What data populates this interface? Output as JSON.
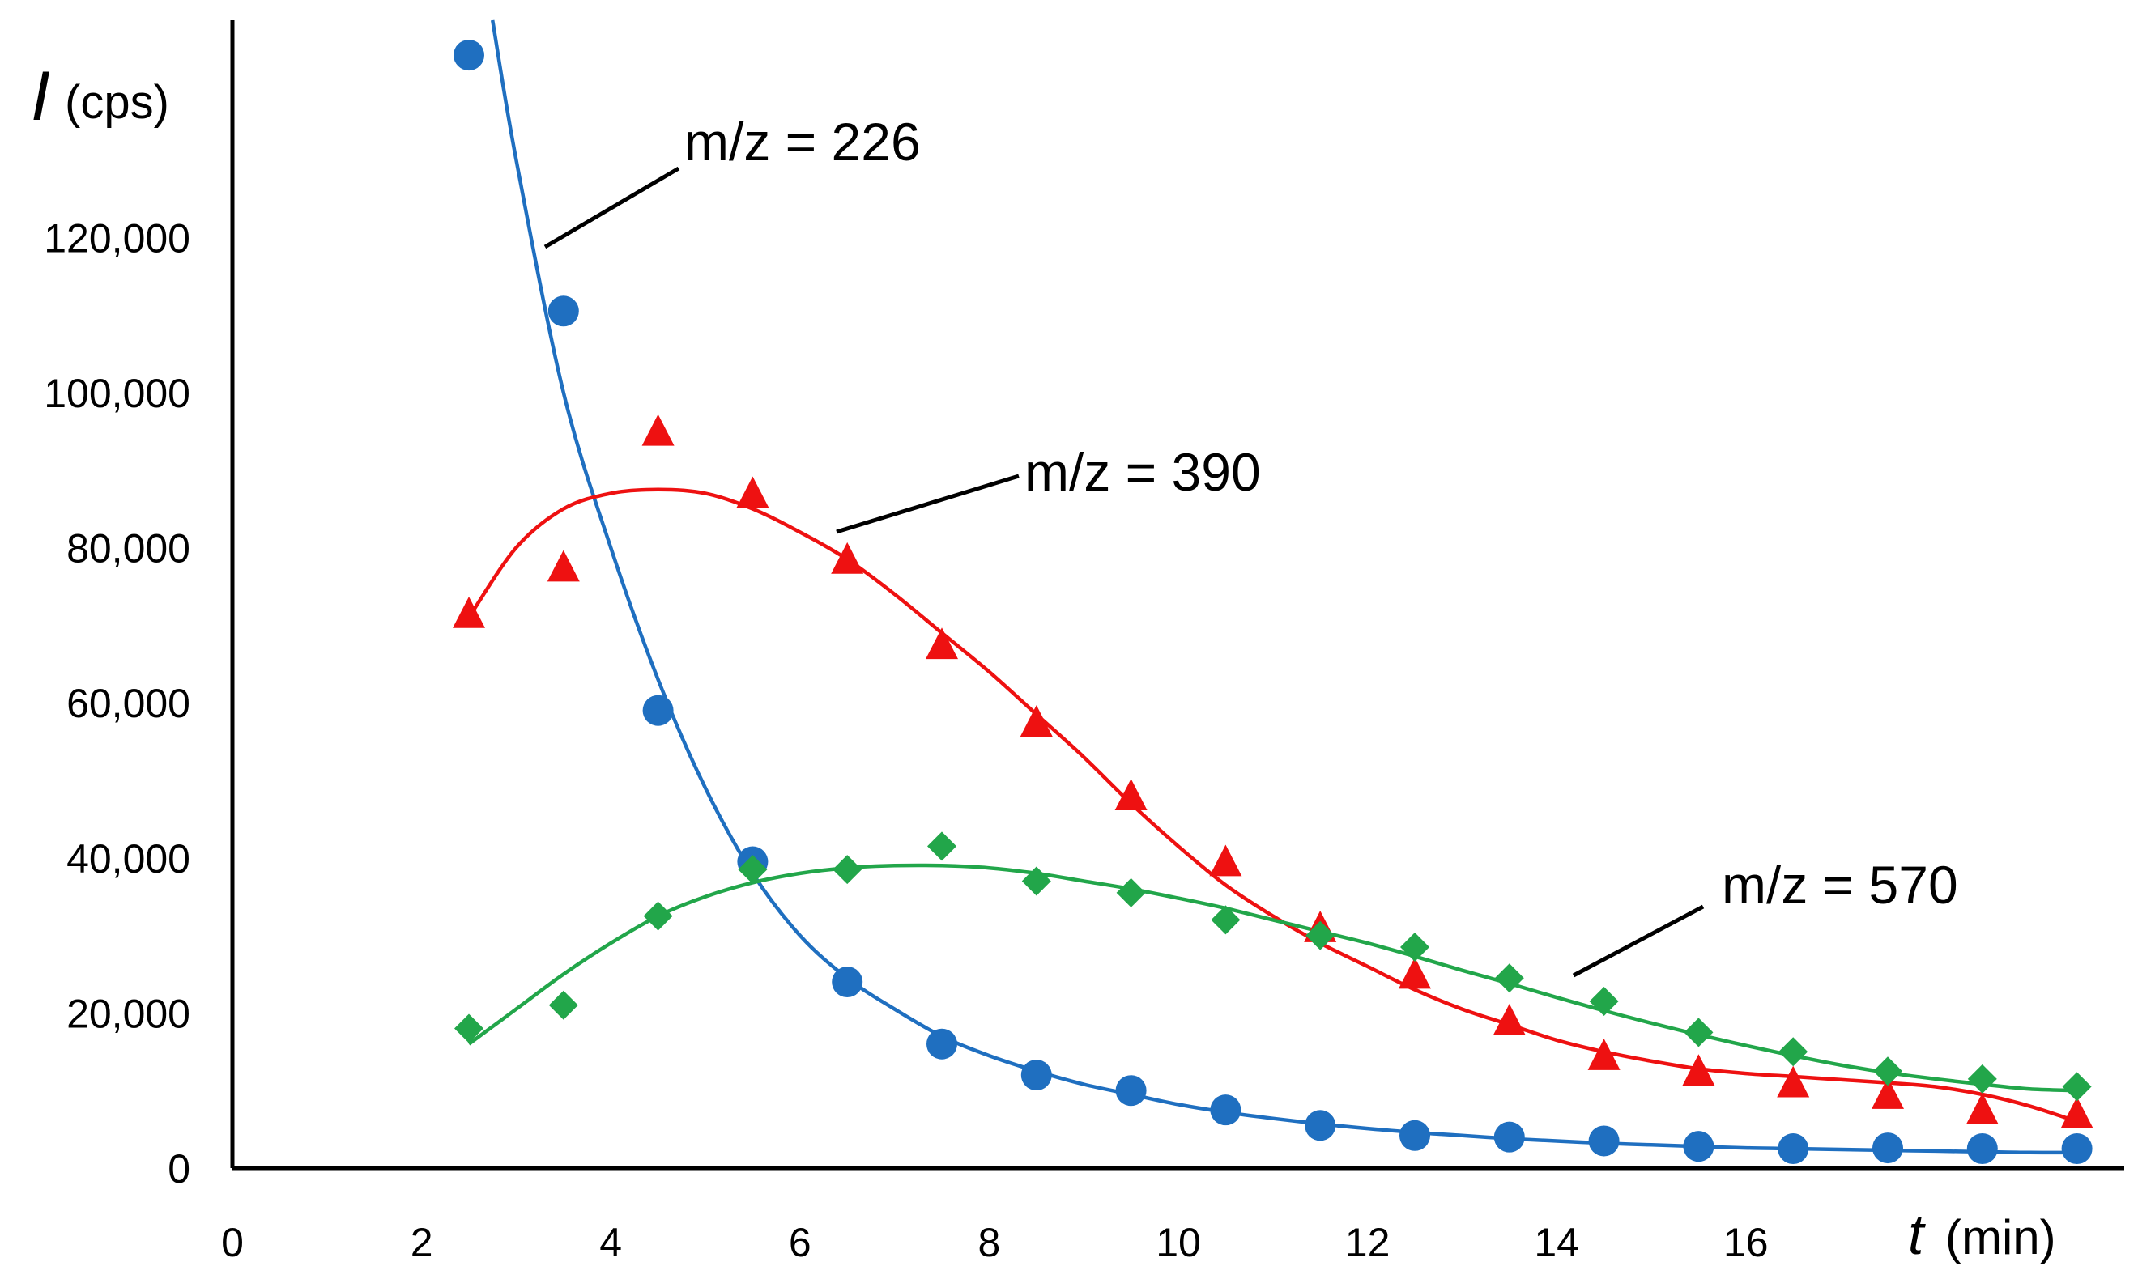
{
  "chart_data": {
    "type": "scatter",
    "title": "",
    "ylabel": {
      "symbol": "I",
      "unit": "(cps)"
    },
    "xlabel": {
      "symbol": "t",
      "unit": "(min)"
    },
    "xlim": [
      0,
      20
    ],
    "ylim": [
      0,
      148000
    ],
    "x_ticks": [
      0,
      2,
      4,
      6,
      8,
      10,
      12,
      14,
      16
    ],
    "x_tick_labels": [
      "0",
      "2",
      "4",
      "6",
      "8",
      "10",
      "12",
      "14",
      "16"
    ],
    "y_ticks": [
      0,
      20000,
      40000,
      60000,
      80000,
      100000,
      120000
    ],
    "y_tick_labels": [
      "0",
      "20,000",
      "40,000",
      "60,000",
      "80,000",
      "100,000",
      "120,000"
    ],
    "grid": false,
    "x": [
      2.5,
      3.5,
      4.5,
      5.5,
      6.5,
      7.5,
      8.5,
      9.5,
      10.5,
      11.5,
      12.5,
      13.5,
      14.5,
      15.5,
      16.5,
      17.5,
      18.5,
      19.5
    ],
    "series": [
      {
        "name": "m/z = 226",
        "color": "#1f6fc0",
        "marker": "circle",
        "values": [
          143500,
          110500,
          59000,
          39500,
          24000,
          16000,
          12000,
          10000,
          7500,
          5500,
          4200,
          4000,
          3500,
          2800,
          2500,
          2600,
          2500,
          2500
        ],
        "fit": [
          [
            2.75,
            148000
          ],
          [
            3.0,
            130000
          ],
          [
            3.5,
            100000
          ],
          [
            4.0,
            80000
          ],
          [
            4.5,
            63000
          ],
          [
            5.0,
            49000
          ],
          [
            5.5,
            38000
          ],
          [
            6.0,
            30000
          ],
          [
            6.5,
            24500
          ],
          [
            7.0,
            20500
          ],
          [
            7.5,
            17000
          ],
          [
            8.0,
            14500
          ],
          [
            8.5,
            12500
          ],
          [
            9.0,
            10800
          ],
          [
            9.5,
            9500
          ],
          [
            10.0,
            8200
          ],
          [
            10.5,
            7200
          ],
          [
            11.0,
            6400
          ],
          [
            11.5,
            5700
          ],
          [
            12.0,
            5100
          ],
          [
            12.5,
            4600
          ],
          [
            13.0,
            4200
          ],
          [
            13.5,
            3800
          ],
          [
            14.0,
            3500
          ],
          [
            14.5,
            3200
          ],
          [
            15.0,
            3000
          ],
          [
            15.5,
            2800
          ],
          [
            16.0,
            2600
          ],
          [
            16.5,
            2500
          ],
          [
            17.0,
            2400
          ],
          [
            17.5,
            2300
          ],
          [
            18.0,
            2200
          ],
          [
            18.5,
            2100
          ],
          [
            19.0,
            2000
          ],
          [
            19.5,
            2000
          ]
        ]
      },
      {
        "name": "m/z = 390",
        "color": "#ee1111",
        "marker": "triangle",
        "values": [
          71500,
          77500,
          95000,
          87000,
          78500,
          67500,
          57500,
          48000,
          39500,
          31000,
          25000,
          19000,
          14500,
          12500,
          11000,
          9500,
          7500,
          7000
        ],
        "fit": [
          [
            2.5,
            71000
          ],
          [
            3.0,
            80000
          ],
          [
            3.5,
            85000
          ],
          [
            4.0,
            87000
          ],
          [
            4.5,
            87500
          ],
          [
            5.0,
            87000
          ],
          [
            5.5,
            85000
          ],
          [
            6.0,
            82000
          ],
          [
            6.5,
            78500
          ],
          [
            7.0,
            74000
          ],
          [
            7.5,
            69000
          ],
          [
            8.0,
            64000
          ],
          [
            8.5,
            58500
          ],
          [
            9.0,
            53000
          ],
          [
            9.5,
            47000
          ],
          [
            10.0,
            41500
          ],
          [
            10.5,
            36500
          ],
          [
            11.0,
            32500
          ],
          [
            11.5,
            29000
          ],
          [
            12.0,
            26000
          ],
          [
            12.5,
            23000
          ],
          [
            13.0,
            20500
          ],
          [
            13.5,
            18500
          ],
          [
            14.0,
            16500
          ],
          [
            14.5,
            15000
          ],
          [
            15.0,
            13800
          ],
          [
            15.5,
            12800
          ],
          [
            16.0,
            12200
          ],
          [
            16.5,
            11800
          ],
          [
            17.0,
            11400
          ],
          [
            17.5,
            11000
          ],
          [
            18.0,
            10500
          ],
          [
            18.5,
            9500
          ],
          [
            19.0,
            8000
          ],
          [
            19.5,
            6000
          ]
        ]
      },
      {
        "name": "m/z = 570",
        "color": "#22a64a",
        "marker": "diamond",
        "values": [
          18000,
          21000,
          32500,
          38500,
          38500,
          41500,
          37000,
          35500,
          32000,
          30000,
          28500,
          24500,
          21500,
          17500,
          15000,
          12500,
          11500,
          10500
        ],
        "fit": [
          [
            2.5,
            16000
          ],
          [
            3.0,
            20500
          ],
          [
            3.5,
            25000
          ],
          [
            4.0,
            29000
          ],
          [
            4.5,
            32500
          ],
          [
            5.0,
            35000
          ],
          [
            5.5,
            36800
          ],
          [
            6.0,
            38000
          ],
          [
            6.5,
            38700
          ],
          [
            7.0,
            39000
          ],
          [
            7.5,
            39000
          ],
          [
            8.0,
            38700
          ],
          [
            8.5,
            38000
          ],
          [
            9.0,
            37000
          ],
          [
            9.5,
            36000
          ],
          [
            10.0,
            34800
          ],
          [
            10.5,
            33500
          ],
          [
            11.0,
            32000
          ],
          [
            11.5,
            30500
          ],
          [
            12.0,
            29000
          ],
          [
            12.5,
            27300
          ],
          [
            13.0,
            25500
          ],
          [
            13.5,
            23800
          ],
          [
            14.0,
            22000
          ],
          [
            14.5,
            20300
          ],
          [
            15.0,
            18700
          ],
          [
            15.5,
            17200
          ],
          [
            16.0,
            15800
          ],
          [
            16.5,
            14500
          ],
          [
            17.0,
            13300
          ],
          [
            17.5,
            12300
          ],
          [
            18.0,
            11500
          ],
          [
            18.5,
            10800
          ],
          [
            19.0,
            10200
          ],
          [
            19.5,
            10000
          ]
        ]
      }
    ],
    "annotations": [
      {
        "series": "m/z = 226",
        "text": "m/z = 226"
      },
      {
        "series": "m/z = 390",
        "text": "m/z = 390"
      },
      {
        "series": "m/z = 570",
        "text": "m/z = 570"
      }
    ]
  }
}
